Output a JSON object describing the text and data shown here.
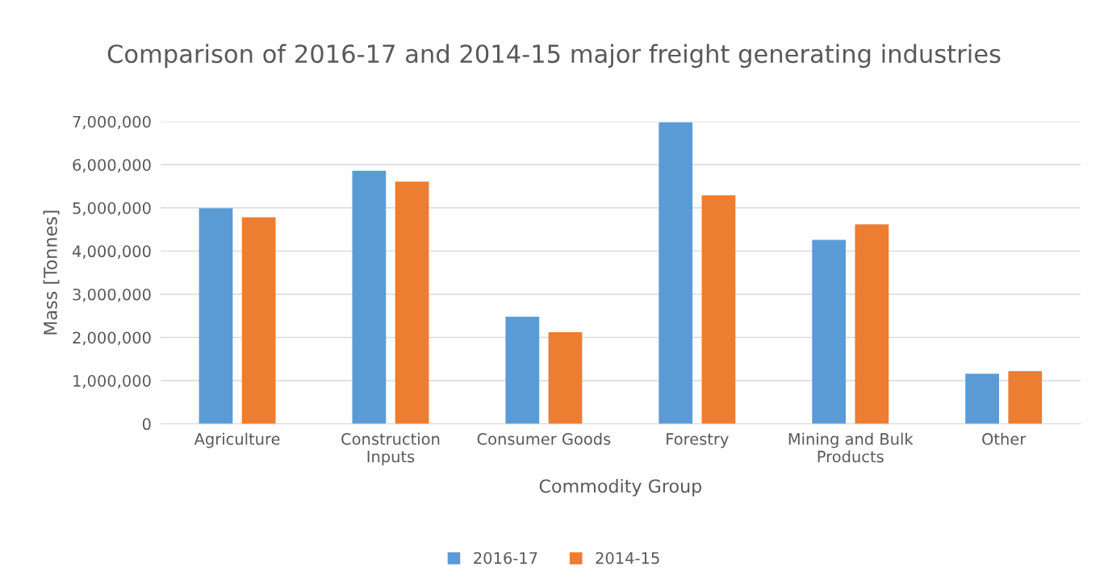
{
  "chart_data": {
    "type": "bar",
    "title": "Comparison of 2016-17 and 2014-15 major freight generating industries",
    "xlabel": "Commodity Group",
    "ylabel": "Mass [Tonnes]",
    "categories": [
      "Agriculture",
      "Construction\nInputs",
      "Consumer Goods",
      "Forestry",
      "Mining and Bulk\nProducts",
      "Other"
    ],
    "series": [
      {
        "name": "2016-17",
        "color": "#5b9bd5",
        "values": [
          4990000,
          5860000,
          2480000,
          6980000,
          4260000,
          1160000
        ]
      },
      {
        "name": "2014-15",
        "color": "#ed7d31",
        "values": [
          4780000,
          5610000,
          2120000,
          5290000,
          4620000,
          1220000
        ]
      }
    ],
    "ylim": [
      0,
      7000000
    ],
    "yticks": [
      {
        "value": 0,
        "label": "0"
      },
      {
        "value": 1000000,
        "label": "1,000,000"
      },
      {
        "value": 2000000,
        "label": "2,000,000"
      },
      {
        "value": 3000000,
        "label": "3,000,000"
      },
      {
        "value": 4000000,
        "label": "4,000,000"
      },
      {
        "value": 5000000,
        "label": "5,000,000"
      },
      {
        "value": 6000000,
        "label": "6,000,000"
      },
      {
        "value": 7000000,
        "label": "7,000,000"
      }
    ],
    "grid": "y",
    "legend": "bottom"
  }
}
